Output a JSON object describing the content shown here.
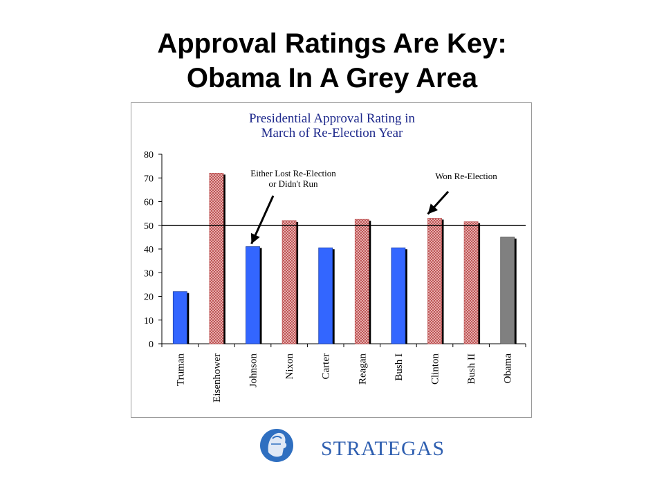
{
  "slide": {
    "title_line1": "Approval Ratings Are Key:",
    "title_line2": "Obama In A Grey Area"
  },
  "chart_data": {
    "type": "bar",
    "title": [
      "Presidential Approval Rating in",
      "March of Re-Election Year"
    ],
    "categories": [
      "Truman",
      "Eisenhower",
      "Johnson",
      "Nixon",
      "Carter",
      "Reagan",
      "Bush I",
      "Clinton",
      "Bush II",
      "Obama"
    ],
    "values": [
      22,
      72,
      41,
      52,
      40.5,
      52.5,
      40.5,
      53,
      51.5,
      45
    ],
    "outcome": [
      "lost",
      "won",
      "lost",
      "won",
      "lost",
      "won",
      "lost",
      "won",
      "won",
      "pending"
    ],
    "ylim": [
      0,
      80
    ],
    "yticks": [
      0,
      10,
      20,
      30,
      40,
      50,
      60,
      70,
      80
    ],
    "reference_line": 50,
    "annotations": [
      {
        "text": [
          "Either Lost Re-Election",
          "or Didn't Run"
        ],
        "points_to": "Johnson"
      },
      {
        "text": [
          "Won Re-Election"
        ],
        "points_to": "Clinton"
      }
    ],
    "colors": {
      "lost": "#3366ff",
      "won": "#e09898",
      "pending": "#808080",
      "title": "#1f2a8c"
    }
  },
  "logo": {
    "name": "STRATEGAS",
    "color": "#2f5fb0"
  }
}
